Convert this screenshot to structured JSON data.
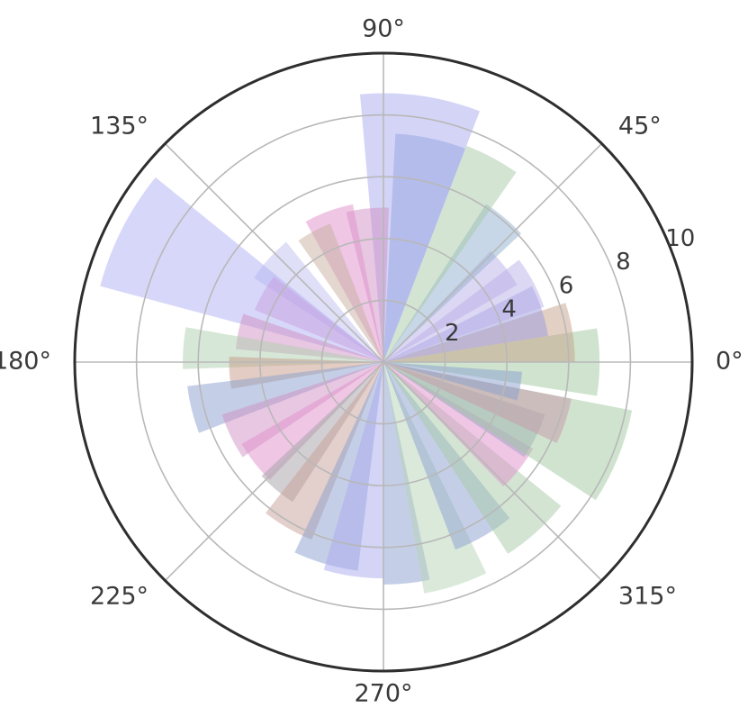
{
  "chart_data": {
    "type": "bar",
    "projection": "polar",
    "title": "",
    "angle_tick_labels": [
      "0°",
      "45°",
      "90°",
      "135°",
      "180°",
      "225°",
      "270°",
      "315°"
    ],
    "angle_ticks_deg": [
      0,
      45,
      90,
      135,
      180,
      225,
      270,
      315
    ],
    "radial_ticks": [
      2,
      4,
      6,
      8,
      10
    ],
    "radial_tick_labels": [
      "2",
      "4",
      "6",
      "8",
      "10"
    ],
    "rlim": [
      0,
      10
    ],
    "grid": true,
    "bars": [
      {
        "theta_deg": 0,
        "width_deg": 18,
        "r": 7.0,
        "color": "#9fc79f"
      },
      {
        "theta_deg": 9,
        "width_deg": 18,
        "r": 6.2,
        "color": "#c8a28a"
      },
      {
        "theta_deg": 18,
        "width_deg": 18,
        "r": 5.4,
        "color": "#9999e0"
      },
      {
        "theta_deg": 28,
        "width_deg": 18,
        "r": 5.5,
        "color": "#b9b0e8"
      },
      {
        "theta_deg": 38,
        "width_deg": 16,
        "r": 5.0,
        "color": "#b9b0e8"
      },
      {
        "theta_deg": 50,
        "width_deg": 14,
        "r": 6.1,
        "color": "#8fb0cf"
      },
      {
        "theta_deg": 62,
        "width_deg": 14,
        "r": 7.5,
        "color": "#a7c9a7"
      },
      {
        "theta_deg": 78,
        "width_deg": 18,
        "r": 7.4,
        "color": "#7f9fd0"
      },
      {
        "theta_deg": 82,
        "width_deg": 26,
        "r": 8.7,
        "color": "#aaaaf0"
      },
      {
        "theta_deg": 96,
        "width_deg": 16,
        "r": 5.0,
        "color": "#d090c4"
      },
      {
        "theta_deg": 110,
        "width_deg": 18,
        "r": 5.2,
        "color": "#e090cc"
      },
      {
        "theta_deg": 118,
        "width_deg": 14,
        "r": 4.8,
        "color": "#c7b0a0"
      },
      {
        "theta_deg": 138,
        "width_deg": 18,
        "r": 5.0,
        "color": "#c0c0f0"
      },
      {
        "theta_deg": 150,
        "width_deg": 16,
        "r": 4.5,
        "color": "#e090cc"
      },
      {
        "theta_deg": 153,
        "width_deg": 24,
        "r": 9.5,
        "color": "#b0b0f4"
      },
      {
        "theta_deg": 168,
        "width_deg": 14,
        "r": 4.8,
        "color": "#d090c4"
      },
      {
        "theta_deg": 176,
        "width_deg": 12,
        "r": 6.5,
        "color": "#b0cfb0"
      },
      {
        "theta_deg": 184,
        "width_deg": 12,
        "r": 5.0,
        "color": "#c59a88"
      },
      {
        "theta_deg": 194,
        "width_deg": 14,
        "r": 6.4,
        "color": "#8a9fd0"
      },
      {
        "theta_deg": 206,
        "width_deg": 16,
        "r": 5.5,
        "color": "#d090c4"
      },
      {
        "theta_deg": 218,
        "width_deg": 16,
        "r": 5.3,
        "color": "#e090cc"
      },
      {
        "theta_deg": 230,
        "width_deg": 14,
        "r": 5.4,
        "color": "#a5a0a8"
      },
      {
        "theta_deg": 240,
        "width_deg": 16,
        "r": 6.2,
        "color": "#c7a098"
      },
      {
        "theta_deg": 254,
        "width_deg": 18,
        "r": 6.8,
        "color": "#8a9fd0"
      },
      {
        "theta_deg": 262,
        "width_deg": 16,
        "r": 7.0,
        "color": "#aaaaf0"
      },
      {
        "theta_deg": 276,
        "width_deg": 12,
        "r": 7.2,
        "color": "#8a9fd0"
      },
      {
        "theta_deg": 288,
        "width_deg": 16,
        "r": 7.6,
        "color": "#b8d4b8"
      },
      {
        "theta_deg": 300,
        "width_deg": 18,
        "r": 6.5,
        "color": "#8a9fd0"
      },
      {
        "theta_deg": 312,
        "width_deg": 18,
        "r": 7.4,
        "color": "#a7c9a7"
      },
      {
        "theta_deg": 322,
        "width_deg": 16,
        "r": 5.6,
        "color": "#e090cc"
      },
      {
        "theta_deg": 334,
        "width_deg": 16,
        "r": 5.5,
        "color": "#a0a0c8"
      },
      {
        "theta_deg": 338,
        "width_deg": 22,
        "r": 8.2,
        "color": "#9fc79f"
      },
      {
        "theta_deg": 342,
        "width_deg": 14,
        "r": 6.2,
        "color": "#c898a8"
      },
      {
        "theta_deg": 350,
        "width_deg": 12,
        "r": 4.5,
        "color": "#8a9fd0"
      }
    ]
  }
}
